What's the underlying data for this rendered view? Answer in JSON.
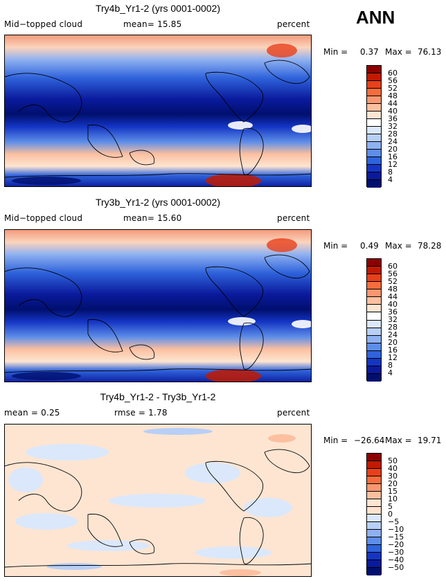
{
  "season": "ANN",
  "panels": [
    {
      "title": "Try4b_Yr1-2 (yrs 0001-0002)",
      "left_label": "Mid−topped cloud",
      "center_label": "mean=  15.85",
      "units": "percent",
      "min_label": "Min =",
      "min_value": "0.37",
      "max_label": "Max =",
      "max_value": "76.13",
      "colorbar_labels": [
        "60",
        "56",
        "52",
        "48",
        "44",
        "40",
        "36",
        "32",
        "28",
        "24",
        "20",
        "16",
        "12",
        "8",
        "4"
      ],
      "colorbar_colors": [
        "#8b0000",
        "#c21a00",
        "#e8401a",
        "#f56d3c",
        "#f99770",
        "#fcc0a0",
        "#fde5d2",
        "#ffffff",
        "#dbe8fb",
        "#b8cff6",
        "#8fb1f1",
        "#5e8ee8",
        "#2f63db",
        "#1435c4",
        "#0a1a9c",
        "#000f6e"
      ]
    },
    {
      "title": "Try3b_Yr1-2 (yrs 0001-0002)",
      "left_label": "Mid−topped cloud",
      "center_label": "mean=  15.60",
      "units": "percent",
      "min_label": "Min =",
      "min_value": "0.49",
      "max_label": "Max =",
      "max_value": "78.28",
      "colorbar_labels": [
        "60",
        "56",
        "52",
        "48",
        "44",
        "40",
        "36",
        "32",
        "28",
        "24",
        "20",
        "16",
        "12",
        "8",
        "4"
      ],
      "colorbar_colors": [
        "#8b0000",
        "#c21a00",
        "#e8401a",
        "#f56d3c",
        "#f99770",
        "#fcc0a0",
        "#fde5d2",
        "#ffffff",
        "#dbe8fb",
        "#b8cff6",
        "#8fb1f1",
        "#5e8ee8",
        "#2f63db",
        "#1435c4",
        "#0a1a9c",
        "#000f6e"
      ]
    },
    {
      "title": "Try4b_Yr1-2 - Try3b_Yr1-2",
      "left_label": "mean =  0.25",
      "center_label": "rmse =  1.78",
      "units": "percent",
      "min_label": "Min =",
      "min_value": "−26.64",
      "max_label": "Max =",
      "max_value": "19.71",
      "colorbar_labels": [
        "50",
        "40",
        "30",
        "20",
        "15",
        "10",
        "5",
        "0",
        "−5",
        "−10",
        "−15",
        "−20",
        "−30",
        "−40",
        "−50"
      ],
      "colorbar_colors": [
        "#8b0000",
        "#c21a00",
        "#e8401a",
        "#f56d3c",
        "#f99770",
        "#fcc0a0",
        "#fde5d2",
        "#ffe3cf",
        "#dbe8fb",
        "#b8cff6",
        "#8fb1f1",
        "#5e8ee8",
        "#2f63db",
        "#1435c4",
        "#0a1a9c",
        "#000f6e"
      ]
    }
  ]
}
